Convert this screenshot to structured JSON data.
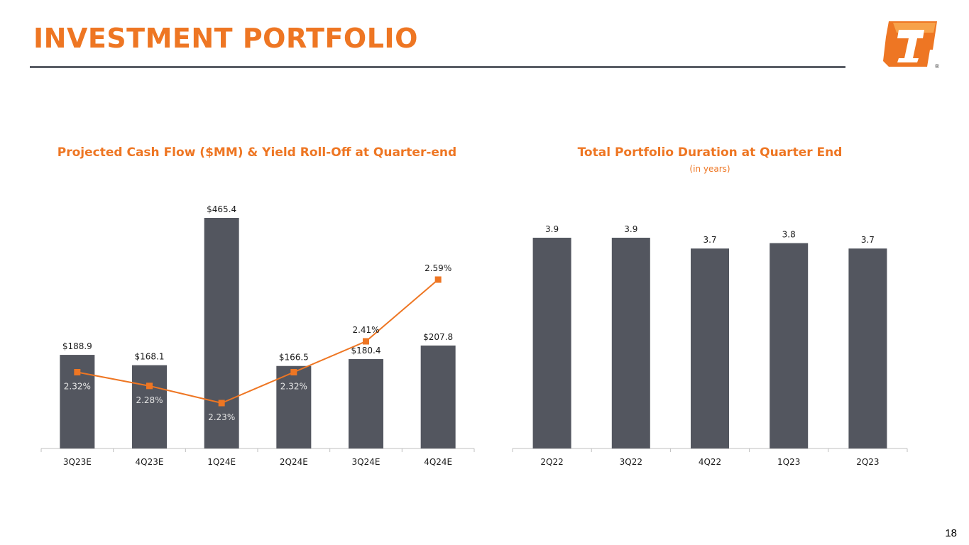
{
  "page": {
    "title": "INVESTMENT PORTFOLIO",
    "page_number": "18"
  },
  "logo": {
    "icon": "company-logo-icon",
    "registered_mark": "®"
  },
  "colors": {
    "accent": "#ee7623",
    "bar": "#53565f",
    "rule": "#5a5e66",
    "text_dark": "#1a1a1a",
    "text_light": "#ffffff"
  },
  "chart_data": [
    {
      "id": "cash-flow",
      "type": "bar",
      "title": "Projected Cash Flow ($MM) & Yield Roll-Off at Quarter-end",
      "categories": [
        "3Q23E",
        "4Q23E",
        "1Q24E",
        "2Q24E",
        "3Q24E",
        "4Q24E"
      ],
      "series": [
        {
          "name": "Projected Cash Flow ($MM)",
          "type": "bar",
          "values": [
            188.9,
            168.1,
            465.4,
            166.5,
            180.4,
            207.8
          ],
          "labels": [
            "$188.9",
            "$168.1",
            "$465.4",
            "$166.5",
            "$180.4",
            "$207.8"
          ]
        },
        {
          "name": "Yield Roll-Off",
          "type": "line",
          "values": [
            2.32,
            2.28,
            2.23,
            2.32,
            2.41,
            2.59
          ],
          "labels": [
            "2.32%",
            "2.28%",
            "2.23%",
            "2.32%",
            "2.41%",
            "2.59%"
          ]
        }
      ],
      "ylim": [
        0,
        465.4
      ],
      "y2lim": [
        2.1,
        2.64
      ],
      "grid": false,
      "legend": "none"
    },
    {
      "id": "duration",
      "type": "bar",
      "title": "Total Portfolio Duration at Quarter End",
      "subtitle": "(in years)",
      "categories": [
        "2Q22",
        "3Q22",
        "4Q22",
        "1Q23",
        "2Q23"
      ],
      "series": [
        {
          "name": "Duration (years)",
          "type": "bar",
          "values": [
            3.9,
            3.9,
            3.7,
            3.8,
            3.7
          ],
          "labels": [
            "3.9",
            "3.9",
            "3.7",
            "3.8",
            "3.7"
          ]
        }
      ],
      "ylim": [
        0,
        3.9
      ],
      "grid": false,
      "legend": "none"
    }
  ]
}
